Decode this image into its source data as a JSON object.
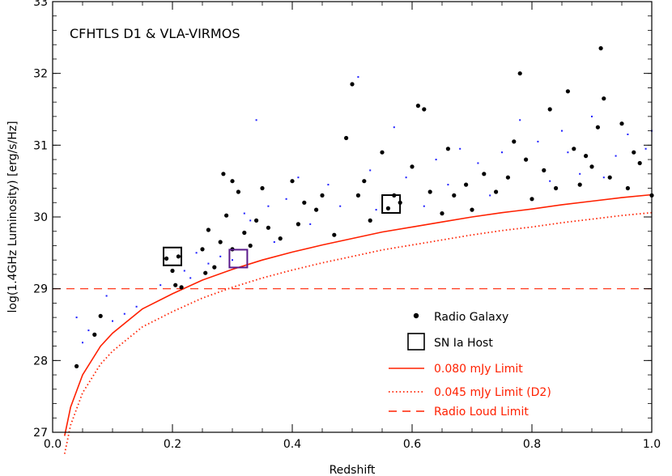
{
  "chart_data": {
    "type": "scatter",
    "title": "CFHTLS D1 & VLA-VIRMOS",
    "xlabel": "Redshift",
    "ylabel": "log(1.4GHz Luminosity) [erg/s/Hz]",
    "xlim": [
      0.0,
      1.0
    ],
    "ylim": [
      27,
      33
    ],
    "x_ticks": [
      0.0,
      0.2,
      0.4,
      0.6,
      0.8,
      1.0
    ],
    "x_tick_labels": [
      "0.0",
      "0.2",
      "0.4",
      "0.6",
      "0.8",
      "1.0"
    ],
    "y_ticks": [
      27,
      28,
      29,
      30,
      31,
      32,
      33
    ],
    "y_tick_labels": [
      "27",
      "28",
      "29",
      "30",
      "31",
      "32",
      "33"
    ],
    "legend": [
      {
        "label": "Radio Galaxy",
        "style": "dot",
        "color": "#000000"
      },
      {
        "label": "SN Ia Host",
        "style": "square",
        "color": "#000000"
      },
      {
        "label": "0.080 mJy Limit",
        "style": "solid",
        "color": "#ff2000"
      },
      {
        "label": "0.045 mJy Limit (D2)",
        "style": "dotted",
        "color": "#ff2000"
      },
      {
        "label": "Radio Loud Limit",
        "style": "dashed",
        "color": "#ff2000"
      }
    ],
    "series": [
      {
        "name": "Radio Galaxy",
        "color": "#000000",
        "points": [
          [
            0.04,
            27.92
          ],
          [
            0.07,
            28.36
          ],
          [
            0.08,
            28.62
          ],
          [
            0.19,
            29.42
          ],
          [
            0.2,
            29.25
          ],
          [
            0.205,
            29.05
          ],
          [
            0.21,
            29.45
          ],
          [
            0.215,
            29.02
          ],
          [
            0.25,
            29.55
          ],
          [
            0.255,
            29.22
          ],
          [
            0.26,
            29.82
          ],
          [
            0.27,
            29.3
          ],
          [
            0.28,
            29.65
          ],
          [
            0.285,
            30.6
          ],
          [
            0.29,
            30.02
          ],
          [
            0.3,
            30.5
          ],
          [
            0.3,
            29.55
          ],
          [
            0.31,
            30.35
          ],
          [
            0.32,
            29.78
          ],
          [
            0.33,
            29.6
          ],
          [
            0.34,
            29.95
          ],
          [
            0.35,
            30.4
          ],
          [
            0.36,
            29.85
          ],
          [
            0.38,
            29.7
          ],
          [
            0.4,
            30.5
          ],
          [
            0.41,
            29.9
          ],
          [
            0.42,
            30.2
          ],
          [
            0.44,
            30.1
          ],
          [
            0.45,
            30.3
          ],
          [
            0.47,
            29.75
          ],
          [
            0.49,
            31.1
          ],
          [
            0.5,
            31.85
          ],
          [
            0.51,
            30.3
          ],
          [
            0.52,
            30.5
          ],
          [
            0.53,
            29.95
          ],
          [
            0.55,
            30.9
          ],
          [
            0.56,
            30.12
          ],
          [
            0.57,
            30.3
          ],
          [
            0.58,
            30.2
          ],
          [
            0.6,
            30.7
          ],
          [
            0.61,
            31.55
          ],
          [
            0.62,
            31.5
          ],
          [
            0.63,
            30.35
          ],
          [
            0.65,
            30.05
          ],
          [
            0.66,
            30.95
          ],
          [
            0.67,
            30.3
          ],
          [
            0.69,
            30.45
          ],
          [
            0.7,
            30.1
          ],
          [
            0.72,
            30.6
          ],
          [
            0.74,
            30.35
          ],
          [
            0.76,
            30.55
          ],
          [
            0.77,
            31.05
          ],
          [
            0.78,
            32.0
          ],
          [
            0.79,
            30.8
          ],
          [
            0.8,
            30.25
          ],
          [
            0.82,
            30.65
          ],
          [
            0.83,
            31.5
          ],
          [
            0.84,
            30.4
          ],
          [
            0.86,
            31.75
          ],
          [
            0.87,
            30.95
          ],
          [
            0.88,
            30.45
          ],
          [
            0.89,
            30.85
          ],
          [
            0.9,
            30.7
          ],
          [
            0.91,
            31.25
          ],
          [
            0.915,
            32.35
          ],
          [
            0.92,
            31.65
          ],
          [
            0.93,
            30.55
          ],
          [
            0.95,
            31.3
          ],
          [
            0.96,
            30.4
          ],
          [
            0.97,
            30.9
          ],
          [
            0.98,
            30.75
          ],
          [
            1.0,
            30.3
          ]
        ]
      },
      {
        "name": "Radio Galaxy (faint)",
        "color": "#1e1eff",
        "points": [
          [
            0.04,
            28.6
          ],
          [
            0.05,
            28.25
          ],
          [
            0.06,
            28.42
          ],
          [
            0.09,
            28.9
          ],
          [
            0.1,
            28.55
          ],
          [
            0.12,
            28.65
          ],
          [
            0.14,
            28.75
          ],
          [
            0.18,
            29.05
          ],
          [
            0.22,
            29.25
          ],
          [
            0.23,
            29.15
          ],
          [
            0.24,
            29.5
          ],
          [
            0.26,
            29.35
          ],
          [
            0.28,
            29.45
          ],
          [
            0.3,
            29.4
          ],
          [
            0.32,
            30.05
          ],
          [
            0.33,
            29.95
          ],
          [
            0.34,
            31.35
          ],
          [
            0.36,
            30.15
          ],
          [
            0.37,
            29.65
          ],
          [
            0.39,
            30.25
          ],
          [
            0.41,
            30.55
          ],
          [
            0.43,
            29.9
          ],
          [
            0.46,
            30.45
          ],
          [
            0.48,
            30.15
          ],
          [
            0.51,
            31.95
          ],
          [
            0.53,
            30.65
          ],
          [
            0.54,
            30.1
          ],
          [
            0.57,
            31.25
          ],
          [
            0.59,
            30.55
          ],
          [
            0.62,
            30.15
          ],
          [
            0.64,
            30.8
          ],
          [
            0.66,
            30.45
          ],
          [
            0.68,
            30.95
          ],
          [
            0.71,
            30.75
          ],
          [
            0.73,
            30.3
          ],
          [
            0.75,
            30.9
          ],
          [
            0.78,
            31.35
          ],
          [
            0.81,
            31.05
          ],
          [
            0.83,
            30.5
          ],
          [
            0.85,
            31.2
          ],
          [
            0.86,
            30.9
          ],
          [
            0.88,
            30.6
          ],
          [
            0.9,
            31.4
          ],
          [
            0.92,
            30.55
          ],
          [
            0.94,
            30.85
          ],
          [
            0.96,
            31.15
          ],
          [
            0.99,
            30.95
          ],
          [
            1.0,
            31.2
          ]
        ]
      },
      {
        "name": "SN Ia Host",
        "color": "#000000",
        "points": [
          [
            0.2,
            29.45
          ],
          [
            0.31,
            29.42
          ],
          [
            0.565,
            30.18
          ]
        ],
        "marker_colors": [
          "#000000",
          "#5a1a8c",
          "#000000"
        ]
      },
      {
        "name": "0.080 mJy Limit",
        "color": "#ff2000",
        "curve": [
          [
            0.02,
            26.95
          ],
          [
            0.03,
            27.35
          ],
          [
            0.05,
            27.8
          ],
          [
            0.08,
            28.2
          ],
          [
            0.1,
            28.38
          ],
          [
            0.15,
            28.72
          ],
          [
            0.2,
            28.93
          ],
          [
            0.25,
            29.12
          ],
          [
            0.3,
            29.27
          ],
          [
            0.35,
            29.4
          ],
          [
            0.4,
            29.51
          ],
          [
            0.45,
            29.61
          ],
          [
            0.5,
            29.7
          ],
          [
            0.55,
            29.79
          ],
          [
            0.6,
            29.86
          ],
          [
            0.65,
            29.93
          ],
          [
            0.7,
            30.0
          ],
          [
            0.75,
            30.06
          ],
          [
            0.8,
            30.11
          ],
          [
            0.85,
            30.17
          ],
          [
            0.9,
            30.22
          ],
          [
            0.95,
            30.27
          ],
          [
            1.0,
            30.31
          ]
        ]
      },
      {
        "name": "0.045 mJy Limit (D2)",
        "color": "#ff2000",
        "curve": [
          [
            0.02,
            26.7
          ],
          [
            0.03,
            27.1
          ],
          [
            0.05,
            27.55
          ],
          [
            0.08,
            27.95
          ],
          [
            0.1,
            28.13
          ],
          [
            0.15,
            28.47
          ],
          [
            0.2,
            28.68
          ],
          [
            0.25,
            28.87
          ],
          [
            0.3,
            29.02
          ],
          [
            0.35,
            29.15
          ],
          [
            0.4,
            29.26
          ],
          [
            0.45,
            29.36
          ],
          [
            0.5,
            29.45
          ],
          [
            0.55,
            29.54
          ],
          [
            0.6,
            29.61
          ],
          [
            0.65,
            29.68
          ],
          [
            0.7,
            29.75
          ],
          [
            0.75,
            29.81
          ],
          [
            0.8,
            29.86
          ],
          [
            0.85,
            29.92
          ],
          [
            0.9,
            29.97
          ],
          [
            0.95,
            30.02
          ],
          [
            1.0,
            30.06
          ]
        ]
      },
      {
        "name": "Radio Loud Limit",
        "color": "#ff2000",
        "value": 29.0
      }
    ]
  }
}
